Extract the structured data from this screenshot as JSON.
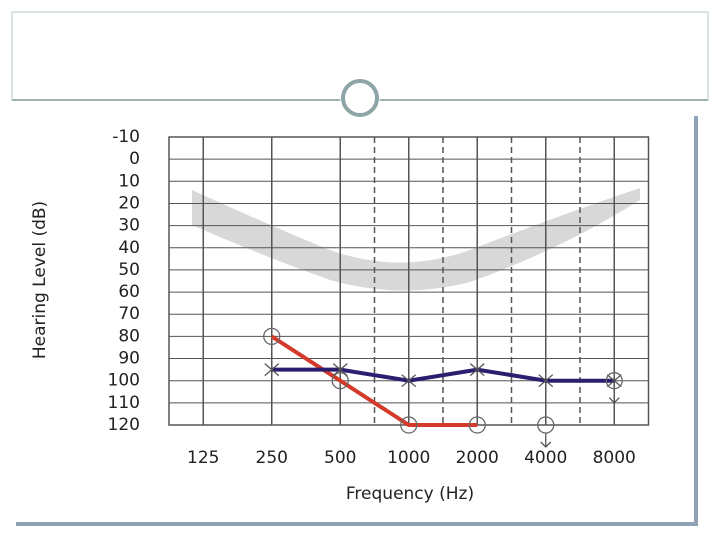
{
  "chart_data": {
    "type": "line",
    "x_label": "Frequency (Hz)",
    "y_label": "Hearing Level (dB)",
    "categories": [
      "125",
      "250",
      "500",
      "1000",
      "2000",
      "4000",
      "8000"
    ],
    "series": [
      {
        "color": "#d33a2a",
        "marker": "o",
        "values": [
          null,
          80,
          100,
          120,
          120,
          null,
          null
        ]
      },
      {
        "color": "#2a1f6e",
        "marker": "x",
        "values": [
          null,
          95,
          95,
          100,
          95,
          100,
          100
        ]
      },
      {
        "color": "#777777",
        "marker": "o-arrow",
        "values": [
          null,
          null,
          null,
          null,
          null,
          120,
          100
        ]
      }
    ],
    "ylim": [
      -10,
      120
    ],
    "y_inverted": true,
    "yticks": [
      -10,
      0,
      10,
      20,
      30,
      40,
      50,
      60,
      70,
      80,
      90,
      100,
      110,
      120
    ],
    "grid": true
  }
}
